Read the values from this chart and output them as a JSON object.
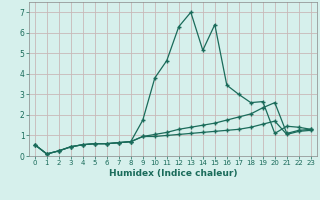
{
  "title": "",
  "xlabel": "Humidex (Indice chaleur)",
  "ylabel": "",
  "background_color": "#d6f0ec",
  "grid_color": "#c8b8b8",
  "line_color": "#1a6b5a",
  "x_values": [
    0,
    1,
    2,
    3,
    4,
    5,
    6,
    7,
    8,
    9,
    10,
    11,
    12,
    13,
    14,
    15,
    16,
    17,
    18,
    19,
    20,
    21,
    22,
    23
  ],
  "series1": [
    0.55,
    0.1,
    0.25,
    0.45,
    0.55,
    0.6,
    0.6,
    0.65,
    0.7,
    1.75,
    3.8,
    4.65,
    6.3,
    7.0,
    5.15,
    6.4,
    3.45,
    3.0,
    2.6,
    2.65,
    1.1,
    1.45,
    1.4,
    1.3
  ],
  "series2": [
    0.55,
    0.1,
    0.25,
    0.45,
    0.55,
    0.6,
    0.6,
    0.65,
    0.7,
    0.95,
    1.05,
    1.15,
    1.3,
    1.4,
    1.5,
    1.6,
    1.75,
    1.9,
    2.05,
    2.35,
    2.6,
    1.1,
    1.25,
    1.3
  ],
  "series3": [
    0.55,
    0.1,
    0.25,
    0.45,
    0.55,
    0.6,
    0.6,
    0.65,
    0.7,
    0.95,
    0.95,
    1.0,
    1.05,
    1.1,
    1.15,
    1.2,
    1.25,
    1.3,
    1.4,
    1.55,
    1.7,
    1.05,
    1.2,
    1.25
  ],
  "ylim": [
    0,
    7.5
  ],
  "yticks": [
    0,
    1,
    2,
    3,
    4,
    5,
    6,
    7
  ],
  "xlim": [
    -0.5,
    23.5
  ],
  "marker": "+",
  "markersize": 3.5,
  "linewidth": 0.9
}
